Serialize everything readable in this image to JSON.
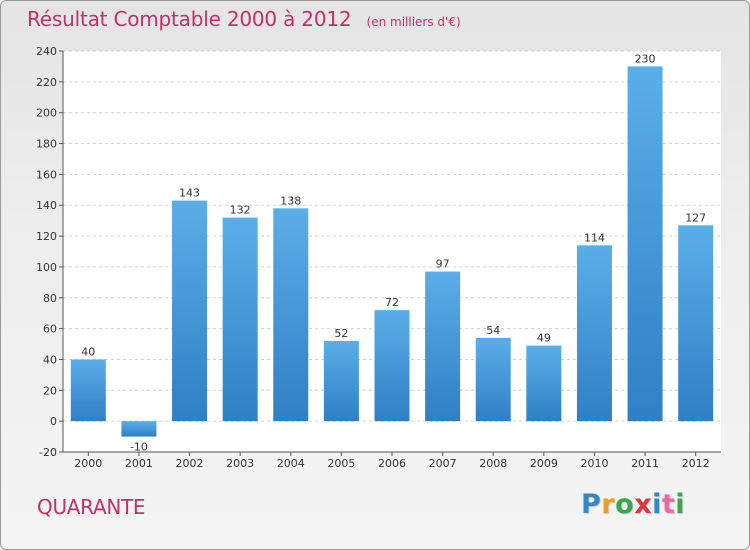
{
  "chart_data": {
    "type": "bar",
    "title": "Résultat Comptable 2000 à 2012",
    "subtitle": "(en milliers d'€)",
    "categories": [
      "2000",
      "2001",
      "2002",
      "2003",
      "2004",
      "2005",
      "2006",
      "2007",
      "2008",
      "2009",
      "2010",
      "2011",
      "2012"
    ],
    "values": [
      40,
      -10,
      143,
      132,
      138,
      52,
      72,
      97,
      54,
      49,
      114,
      230,
      127
    ],
    "ylim": [
      -20,
      240
    ],
    "yticks": [
      -20,
      0,
      20,
      40,
      60,
      80,
      100,
      120,
      140,
      160,
      180,
      200,
      220,
      240
    ],
    "grid": true,
    "bar_color_light": "#5aaee8",
    "bar_color_dark": "#2f7fc4"
  },
  "footer": {
    "town": "QUARANTE",
    "brand": "Proxiti",
    "brand_colors": [
      "#2f86c8",
      "#e8a21a",
      "#3aa84a",
      "#d63a3a",
      "#2f86c8",
      "#e86aa0",
      "#3aa84a"
    ]
  }
}
